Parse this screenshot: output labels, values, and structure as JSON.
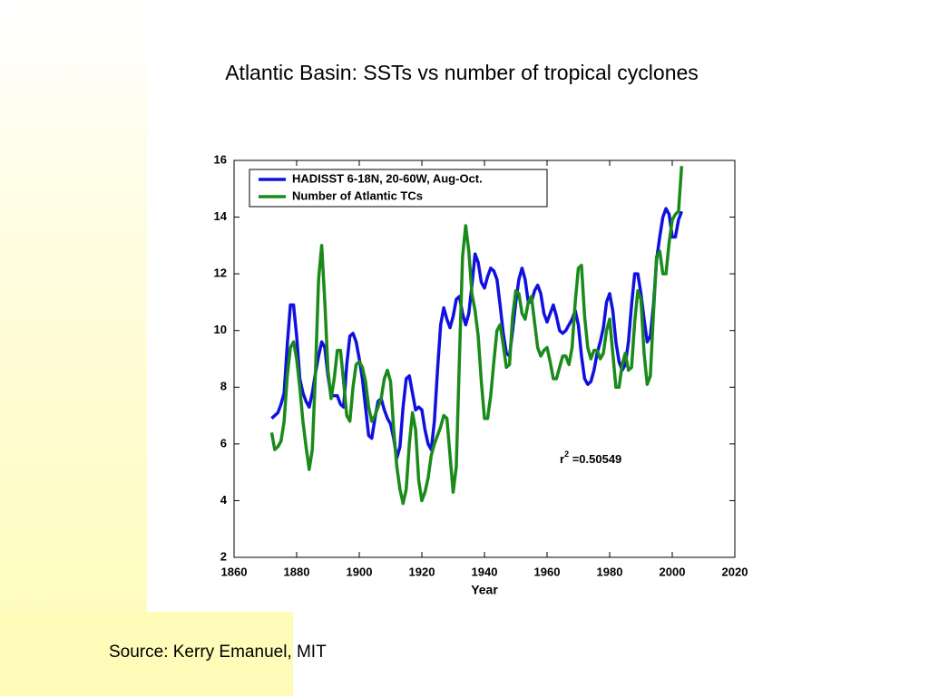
{
  "slide": {
    "title": "Atlantic Basin: SSTs vs number of tropical cyclones",
    "source": "Source:  Kerry Emanuel, MIT"
  },
  "chart_data": {
    "type": "line",
    "xlabel": "Year",
    "annotation": {
      "text": "r",
      "superscript": "2",
      "rest": " =0.50549"
    },
    "legend": "upper left",
    "xlim": [
      1860,
      2020
    ],
    "xticks": [
      1860,
      1880,
      1900,
      1920,
      1940,
      1960,
      1980,
      2000,
      2020
    ],
    "ylim": [
      2,
      16
    ],
    "yticks": [
      2,
      4,
      6,
      8,
      10,
      12,
      14,
      16
    ],
    "x": [
      1872,
      1873,
      1874,
      1875,
      1876,
      1877,
      1878,
      1879,
      1880,
      1881,
      1882,
      1883,
      1884,
      1885,
      1886,
      1887,
      1888,
      1889,
      1890,
      1891,
      1892,
      1893,
      1894,
      1895,
      1896,
      1897,
      1898,
      1899,
      1900,
      1901,
      1902,
      1903,
      1904,
      1905,
      1906,
      1907,
      1908,
      1909,
      1910,
      1911,
      1912,
      1913,
      1914,
      1915,
      1916,
      1917,
      1918,
      1919,
      1920,
      1921,
      1922,
      1923,
      1924,
      1925,
      1926,
      1927,
      1928,
      1929,
      1930,
      1931,
      1932,
      1933,
      1934,
      1935,
      1936,
      1937,
      1938,
      1939,
      1940,
      1941,
      1942,
      1943,
      1944,
      1945,
      1946,
      1947,
      1948,
      1949,
      1950,
      1951,
      1952,
      1953,
      1954,
      1955,
      1956,
      1957,
      1958,
      1959,
      1960,
      1961,
      1962,
      1963,
      1964,
      1965,
      1966,
      1967,
      1968,
      1969,
      1970,
      1971,
      1972,
      1973,
      1974,
      1975,
      1976,
      1977,
      1978,
      1979,
      1980,
      1981,
      1982,
      1983,
      1984,
      1985,
      1986,
      1987,
      1988,
      1989,
      1990,
      1991,
      1992,
      1993,
      1994,
      1995,
      1996,
      1997,
      1998,
      1999,
      2000,
      2001,
      2002,
      2003
    ],
    "series": [
      {
        "name": "HADISST 6-18N, 20-60W, Aug-Oct.",
        "color": "#1010e0",
        "values": [
          6.9,
          7.0,
          7.1,
          7.4,
          7.8,
          9.5,
          10.9,
          10.9,
          9.8,
          8.3,
          7.8,
          7.5,
          7.3,
          7.8,
          8.5,
          9.1,
          9.6,
          9.4,
          8.4,
          7.7,
          7.7,
          7.7,
          7.4,
          7.3,
          8.8,
          9.8,
          9.9,
          9.6,
          9.0,
          8.3,
          7.3,
          6.3,
          6.2,
          6.9,
          7.5,
          7.6,
          7.2,
          6.9,
          6.7,
          6.2,
          5.5,
          5.9,
          7.3,
          8.3,
          8.4,
          7.8,
          7.2,
          7.3,
          7.2,
          6.5,
          6.0,
          5.8,
          6.8,
          8.6,
          10.2,
          10.8,
          10.4,
          10.1,
          10.5,
          11.1,
          11.2,
          10.6,
          10.2,
          10.6,
          11.6,
          12.7,
          12.4,
          11.7,
          11.5,
          11.9,
          12.2,
          12.1,
          11.8,
          10.9,
          9.9,
          9.2,
          9.1,
          10.0,
          11.0,
          11.8,
          12.2,
          11.8,
          11.0,
          11.0,
          11.4,
          11.6,
          11.3,
          10.6,
          10.3,
          10.6,
          10.9,
          10.5,
          10.0,
          9.9,
          10.0,
          10.2,
          10.4,
          10.7,
          10.2,
          9.1,
          8.3,
          8.1,
          8.2,
          8.6,
          9.2,
          9.6,
          10.1,
          11.0,
          11.3,
          10.7,
          9.6,
          8.9,
          8.6,
          8.8,
          9.6,
          10.9,
          12.0,
          12.0,
          11.3,
          10.4,
          9.6,
          9.8,
          10.9,
          12.5,
          13.3,
          14.0,
          14.3,
          14.1,
          13.3,
          13.3,
          13.9,
          14.2
        ]
      },
      {
        "name": "Number of Atlantic TCs",
        "color": "#1a8a1a",
        "values": [
          6.4,
          5.8,
          5.9,
          6.1,
          6.8,
          8.4,
          9.4,
          9.6,
          9.0,
          8.0,
          6.8,
          5.9,
          5.1,
          5.8,
          8.5,
          11.8,
          13.0,
          11.0,
          8.6,
          7.6,
          8.3,
          9.3,
          9.3,
          8.2,
          7.0,
          6.8,
          8.0,
          8.8,
          8.9,
          8.7,
          8.2,
          7.3,
          6.8,
          7.0,
          7.3,
          7.6,
          8.3,
          8.6,
          8.2,
          6.5,
          5.2,
          4.4,
          3.9,
          4.4,
          6.0,
          7.1,
          6.5,
          4.7,
          4.0,
          4.3,
          4.8,
          5.6,
          6.0,
          6.3,
          6.6,
          7.0,
          6.9,
          5.6,
          4.3,
          5.2,
          9.0,
          12.6,
          13.7,
          12.8,
          11.3,
          10.7,
          9.8,
          8.2,
          6.9,
          6.9,
          7.7,
          8.9,
          10.0,
          10.2,
          9.5,
          8.7,
          8.8,
          10.5,
          11.4,
          11.3,
          10.6,
          10.4,
          11.0,
          11.2,
          10.3,
          9.4,
          9.1,
          9.3,
          9.4,
          8.9,
          8.3,
          8.3,
          8.7,
          9.1,
          9.1,
          8.8,
          9.4,
          11.0,
          12.2,
          12.3,
          10.5,
          9.4,
          9.0,
          9.3,
          9.3,
          9.0,
          9.2,
          10.0,
          10.4,
          9.2,
          8.0,
          8.0,
          8.8,
          9.2,
          8.6,
          8.7,
          10.3,
          11.4,
          11.1,
          9.2,
          8.1,
          8.4,
          10.6,
          12.6,
          12.8,
          12.0,
          12.0,
          13.1,
          13.9,
          14.1,
          14.2,
          15.8
        ]
      }
    ]
  }
}
